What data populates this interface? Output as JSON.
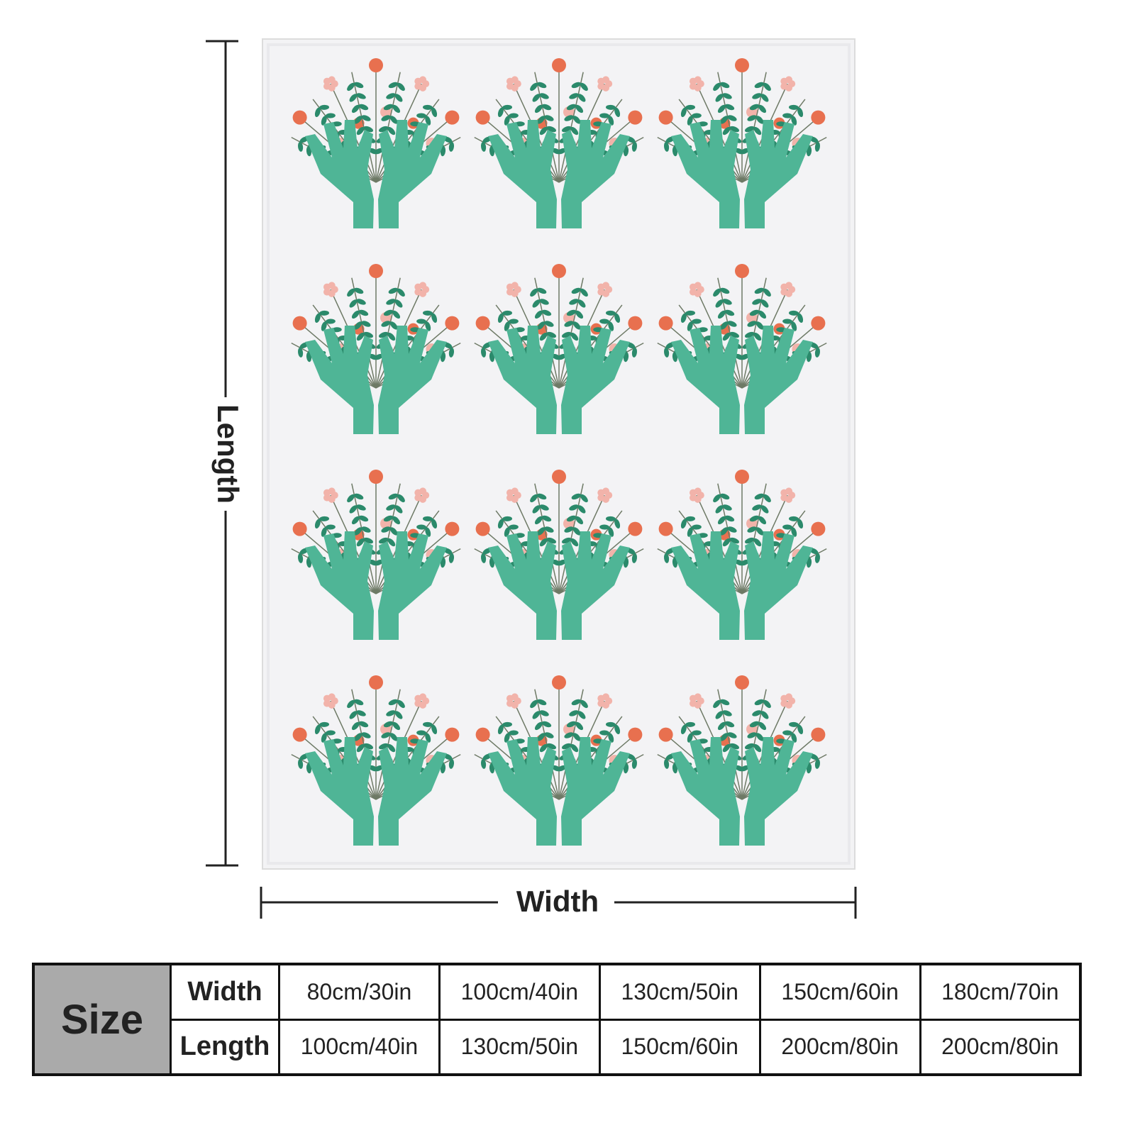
{
  "dimensions": {
    "length_label": "Length",
    "width_label": "Width"
  },
  "table": {
    "header": "Size",
    "rows": [
      [
        "Width",
        "80cm/30in",
        "100cm/40in",
        "130cm/50in",
        "150cm/60in",
        "180cm/70in"
      ],
      [
        "Length",
        "100cm/40in",
        "130cm/50in",
        "150cm/60in",
        "200cm/80in",
        "200cm/80in"
      ]
    ]
  }
}
